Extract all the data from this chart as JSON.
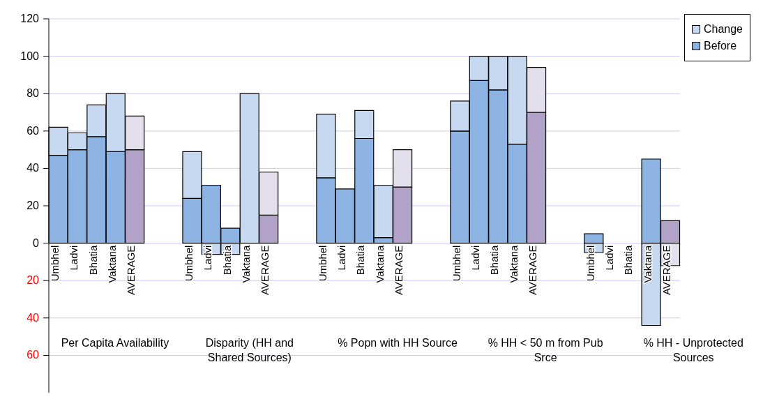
{
  "chart_data": {
    "type": "bar",
    "stacked": true,
    "categories": [
      "Umbhel",
      "Ladvi",
      "Bhatia",
      "Vaktana",
      "AVERAGE",
      null,
      null,
      "Umbhel",
      "Ladvi",
      "Bhatia",
      "Vaktana",
      "AVERAGE",
      null,
      null,
      "Umbhel",
      "Ladvi",
      "Bhatia",
      "Vaktana",
      "AVERAGE",
      null,
      null,
      "Umbhel",
      "Ladvi",
      "Bhatia",
      "Vaktana",
      "AVERAGE",
      null,
      null,
      "Umbhel",
      "Ladvi",
      "Bhatia",
      "Vaktana",
      "AVERAGE"
    ],
    "series": [
      {
        "name": "Before",
        "color": "#8db3e2",
        "colors": [
          "#8db3e2",
          "#8db3e2",
          "#8db3e2",
          "#8db3e2",
          "#b3a2c7",
          "#8db3e2",
          "#8db3e2",
          "#8db3e2",
          "#8db3e2",
          "#8db3e2",
          "#8db3e2",
          "#b3a2c7",
          "#8db3e2",
          "#8db3e2",
          "#8db3e2",
          "#8db3e2",
          "#8db3e2",
          "#8db3e2",
          "#b3a2c7",
          "#8db3e2",
          "#8db3e2",
          "#8db3e2",
          "#8db3e2",
          "#8db3e2",
          "#8db3e2",
          "#b3a2c7",
          "#8db3e2",
          "#8db3e2",
          "#8db3e2",
          "#8db3e2",
          "#8db3e2",
          "#8db3e2",
          "#b3a2c7"
        ],
        "values": [
          47,
          50,
          57,
          49,
          50,
          null,
          null,
          24,
          31,
          8,
          0,
          15,
          null,
          null,
          35,
          29,
          56,
          3,
          30,
          null,
          null,
          60,
          87,
          82,
          53,
          70,
          null,
          null,
          5,
          0,
          0,
          45,
          12
        ]
      },
      {
        "name": "Change",
        "color": "#c6d9f1",
        "colors": [
          "#c6d9f1",
          "#c6d9f1",
          "#c6d9f1",
          "#c6d9f1",
          "#e4dfec",
          "#c6d9f1",
          "#c6d9f1",
          "#c6d9f1",
          "#c6d9f1",
          "#c6d9f1",
          "#c6d9f1",
          "#e4dfec",
          "#c6d9f1",
          "#c6d9f1",
          "#c6d9f1",
          "#c6d9f1",
          "#c6d9f1",
          "#c6d9f1",
          "#e4dfec",
          "#c6d9f1",
          "#c6d9f1",
          "#c6d9f1",
          "#c6d9f1",
          "#c6d9f1",
          "#c6d9f1",
          "#e4dfec",
          "#c6d9f1",
          "#c6d9f1",
          "#c6d9f1",
          "#c6d9f1",
          "#c6d9f1",
          "#c6d9f1",
          "#e4dfec"
        ],
        "values": [
          15,
          9,
          17,
          31,
          18,
          null,
          null,
          25,
          -6,
          -6,
          80,
          23,
          null,
          null,
          34,
          0,
          15,
          28,
          20,
          null,
          null,
          16,
          13,
          18,
          47,
          24,
          null,
          null,
          -5,
          0,
          0,
          -44,
          -12
        ]
      }
    ],
    "ylim": [
      -80,
      120
    ],
    "yticks": [
      120,
      100,
      80,
      60,
      40,
      20,
      0,
      {
        "value": -20,
        "label": "20"
      },
      {
        "value": -40,
        "label": "40"
      },
      {
        "value": -60,
        "label": "60"
      }
    ],
    "grid": "y",
    "legend": "top right",
    "annotations": [
      "Per Capita Availability",
      "Disparity (HH and Shared Sources)",
      "% Popn with HH Source",
      "% HH < 50 m from Pub Srce",
      "% HH - Unprotected Sources"
    ]
  }
}
